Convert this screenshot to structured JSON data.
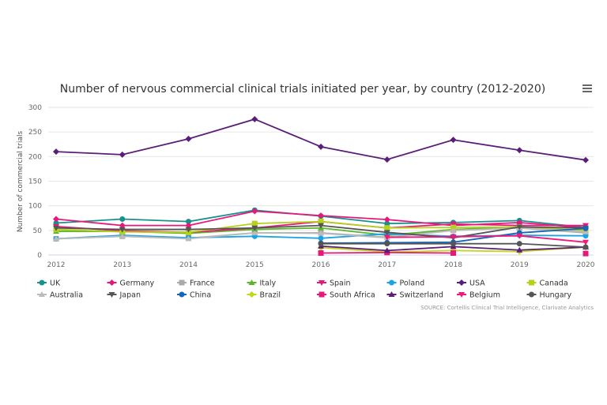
{
  "chart_data": {
    "type": "line",
    "title": "Number of nervous commercial clinical trials initiated per year, by country (2012-2020)",
    "ylabel": "Number of commercial trials",
    "xlabel": "",
    "ylim": [
      0,
      300
    ],
    "yticks": [
      0,
      50,
      100,
      150,
      200,
      250,
      300
    ],
    "x": [
      "2012",
      "2013",
      "2014",
      "2015",
      "2016",
      "2017",
      "2018",
      "2019",
      "2020"
    ],
    "grid": "horizontal",
    "legend": "bottom",
    "source": "SOURCE: Cortellis Clinical Trial Intelligence, Clarivate Analytics",
    "series": [
      {
        "name": "UK",
        "color": "#17918f",
        "marker": "circle",
        "values": [
          65,
          73,
          68,
          91,
          79,
          64,
          66,
          70,
          56
        ]
      },
      {
        "name": "Germany",
        "color": "#e6197a",
        "marker": "diamond",
        "values": [
          73,
          60,
          60,
          89,
          80,
          72,
          60,
          66,
          55
        ]
      },
      {
        "name": "France",
        "color": "#aaaaaa",
        "marker": "square",
        "values": [
          33,
          38,
          34,
          45,
          45,
          36,
          50,
          55,
          45
        ]
      },
      {
        "name": "Italy",
        "color": "#5db52c",
        "marker": "triangle",
        "values": [
          48,
          48,
          44,
          52,
          55,
          40,
          52,
          57,
          50
        ]
      },
      {
        "name": "Spain",
        "color": "#e6197a",
        "marker": "triangle-down",
        "values": [
          58,
          49,
          46,
          55,
          68,
          55,
          63,
          60,
          60
        ]
      },
      {
        "name": "Poland",
        "color": "#1aa4e6",
        "marker": "circle",
        "values": [
          33,
          40,
          35,
          38,
          34,
          43,
          38,
          40,
          39
        ]
      },
      {
        "name": "USA",
        "color": "#5b1e78",
        "marker": "diamond",
        "values": [
          210,
          204,
          236,
          276,
          220,
          194,
          234,
          213,
          193
        ]
      },
      {
        "name": "Canada",
        "color": "#b5d11a",
        "marker": "square",
        "values": [
          52,
          47,
          46,
          64,
          68,
          55,
          56,
          57,
          50
        ]
      },
      {
        "name": "Australia",
        "color": "#bbbbbb",
        "marker": "triangle",
        "values": [
          33,
          38,
          33,
          45,
          44,
          35,
          50,
          55,
          47
        ]
      },
      {
        "name": "Japan",
        "color": "#555555",
        "marker": "triangle-down",
        "values": [
          55,
          52,
          52,
          55,
          60,
          46,
          35,
          57,
          55
        ]
      },
      {
        "name": "China",
        "color": "#1466b8",
        "marker": "circle",
        "values": [
          null,
          null,
          null,
          null,
          24,
          25,
          26,
          45,
          54
        ]
      },
      {
        "name": "Brazil",
        "color": "#c2d61a",
        "marker": "diamond",
        "values": [
          null,
          null,
          null,
          null,
          15,
          6,
          9,
          7,
          16
        ]
      },
      {
        "name": "South Africa",
        "color": "#e6197a",
        "marker": "square",
        "values": [
          null,
          null,
          null,
          null,
          4,
          5,
          4,
          null,
          3
        ]
      },
      {
        "name": "Switzerland",
        "color": "#5b1e78",
        "marker": "triangle",
        "values": [
          null,
          null,
          null,
          null,
          18,
          9,
          17,
          10,
          16
        ]
      },
      {
        "name": "Belgium",
        "color": "#f0197a",
        "marker": "triangle-down",
        "values": [
          null,
          null,
          null,
          null,
          null,
          36,
          37,
          39,
          26
        ]
      },
      {
        "name": "Hungary",
        "color": "#555555",
        "marker": "circle",
        "values": [
          null,
          null,
          null,
          null,
          23,
          23,
          23,
          23,
          16
        ]
      }
    ]
  },
  "menu_icon": "hamburger-icon"
}
